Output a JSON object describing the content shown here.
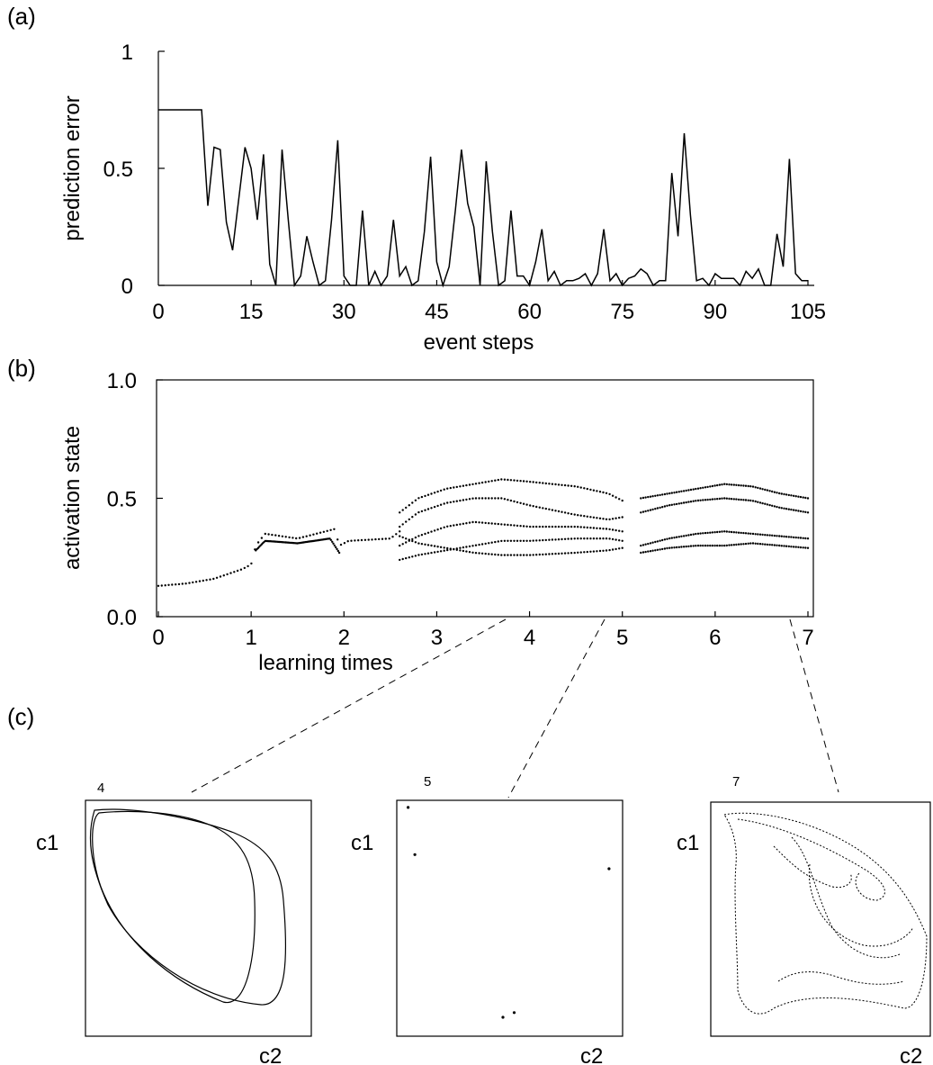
{
  "chart_data": [
    {
      "panel": "(a)",
      "type": "line",
      "xlabel": "event steps",
      "ylabel": "prediction error",
      "xlim": [
        0,
        105
      ],
      "ylim": [
        0,
        1
      ],
      "x_ticks": [
        "0",
        "15",
        "30",
        "45",
        "60",
        "75",
        "90",
        "105"
      ],
      "y_ticks": [
        "0",
        "0.5",
        "1"
      ],
      "grid": false,
      "series": [
        {
          "x": [
            0,
            7,
            8,
            9,
            10,
            11,
            12,
            14,
            15,
            16,
            17,
            18,
            19,
            20,
            21,
            22,
            23,
            24,
            25,
            26,
            27,
            28,
            29,
            30,
            31,
            32,
            33,
            34,
            35,
            36,
            37,
            38,
            39,
            40,
            41,
            42,
            43,
            44,
            45,
            46,
            47,
            48,
            49,
            50,
            51,
            52,
            53,
            54,
            55,
            56,
            57,
            58,
            59,
            60,
            61,
            62,
            63,
            64,
            65,
            66,
            67,
            68,
            69,
            70,
            71,
            72,
            73,
            74,
            75,
            76,
            77,
            78,
            79,
            80,
            81,
            82,
            83,
            84,
            85,
            86,
            87,
            88,
            89,
            90,
            91,
            92,
            93,
            94,
            95,
            96,
            97,
            98,
            99,
            100,
            101,
            102,
            103,
            104,
            105
          ],
          "y": [
            0.75,
            0.75,
            0.34,
            0.59,
            0.58,
            0.27,
            0.15,
            0.59,
            0.5,
            0.28,
            0.56,
            0.09,
            0.0,
            0.58,
            0.28,
            0.0,
            0.04,
            0.21,
            0.1,
            0.0,
            0.02,
            0.28,
            0.62,
            0.04,
            0.0,
            0.0,
            0.32,
            0.0,
            0.06,
            0.0,
            0.04,
            0.28,
            0.04,
            0.08,
            0.0,
            0.02,
            0.23,
            0.55,
            0.1,
            0.0,
            0.08,
            0.32,
            0.58,
            0.35,
            0.25,
            0.0,
            0.53,
            0.23,
            0.0,
            0.02,
            0.32,
            0.04,
            0.04,
            0.0,
            0.1,
            0.24,
            0.02,
            0.06,
            0.0,
            0.02,
            0.02,
            0.03,
            0.05,
            0.0,
            0.05,
            0.24,
            0.02,
            0.05,
            0.0,
            0.03,
            0.04,
            0.07,
            0.05,
            0.0,
            0.02,
            0.02,
            0.48,
            0.21,
            0.65,
            0.3,
            0.02,
            0.03,
            0.0,
            0.05,
            0.03,
            0.03,
            0.03,
            0.0,
            0.06,
            0.03,
            0.07,
            0.0,
            0.0,
            0.22,
            0.08,
            0.54,
            0.05,
            0.02,
            0.02
          ]
        }
      ]
    },
    {
      "panel": "(b)",
      "type": "scatter",
      "xlabel": "learning times",
      "ylabel": "activation state",
      "xlim": [
        0,
        7
      ],
      "ylim": [
        0.0,
        1.0
      ],
      "x_ticks": [
        "0",
        "1",
        "2",
        "3",
        "4",
        "5",
        "6",
        "7"
      ],
      "y_ticks": [
        "0.0",
        "0.5",
        "1.0"
      ],
      "grid": false,
      "branches": [
        {
          "x": [
            0,
            0.3,
            0.6,
            0.9,
            1.0,
            1.05,
            1.15,
            1.5,
            1.9,
            1.95,
            2.05,
            2.5,
            2.6
          ],
          "y": [
            0.13,
            0.14,
            0.16,
            0.2,
            0.22,
            0.3,
            0.35,
            0.33,
            0.37,
            0.3,
            0.32,
            0.33,
            0.36
          ]
        },
        {
          "x": [
            1.05,
            1.15,
            1.5,
            1.85,
            1.95
          ],
          "y": [
            0.28,
            0.32,
            0.31,
            0.33,
            0.27
          ]
        },
        {
          "x": [
            2.6,
            2.8,
            3.1,
            3.4,
            3.7,
            4.0,
            4.5,
            4.85,
            5.0
          ],
          "y": [
            0.44,
            0.5,
            0.54,
            0.56,
            0.58,
            0.57,
            0.55,
            0.52,
            0.49
          ]
        },
        {
          "x": [
            2.6,
            2.8,
            3.1,
            3.4,
            3.7,
            4.0,
            4.5,
            4.85,
            5.0
          ],
          "y": [
            0.3,
            0.34,
            0.38,
            0.4,
            0.39,
            0.38,
            0.38,
            0.37,
            0.36
          ]
        },
        {
          "x": [
            2.6,
            2.8,
            3.1,
            3.4,
            3.7,
            4.0,
            4.5,
            4.85,
            5.0
          ],
          "y": [
            0.24,
            0.26,
            0.28,
            0.3,
            0.32,
            0.32,
            0.33,
            0.33,
            0.32
          ]
        },
        {
          "x": [
            2.6,
            2.8,
            3.1,
            3.4,
            3.7,
            4.0,
            4.5,
            4.85,
            5.0
          ],
          "y": [
            0.38,
            0.44,
            0.48,
            0.5,
            0.5,
            0.47,
            0.43,
            0.41,
            0.42
          ]
        },
        {
          "x": [
            2.6,
            2.8,
            3.1,
            3.4,
            3.7,
            4.0,
            4.5,
            4.85,
            5.0
          ],
          "y": [
            0.34,
            0.31,
            0.29,
            0.27,
            0.26,
            0.26,
            0.27,
            0.28,
            0.29
          ]
        },
        {
          "x": [
            5.2,
            5.5,
            5.8,
            6.1,
            6.4,
            6.7,
            7.0
          ],
          "y": [
            0.5,
            0.52,
            0.54,
            0.56,
            0.55,
            0.52,
            0.5
          ]
        },
        {
          "x": [
            5.2,
            5.5,
            5.8,
            6.1,
            6.4,
            6.7,
            7.0
          ],
          "y": [
            0.3,
            0.33,
            0.35,
            0.36,
            0.35,
            0.34,
            0.33
          ]
        },
        {
          "x": [
            5.2,
            5.5,
            5.8,
            6.1,
            6.4,
            6.7,
            7.0
          ],
          "y": [
            0.27,
            0.29,
            0.3,
            0.3,
            0.31,
            0.3,
            0.29
          ]
        },
        {
          "x": [
            5.2,
            5.5,
            5.8,
            6.1,
            6.4,
            6.7,
            7.0
          ],
          "y": [
            0.44,
            0.47,
            0.49,
            0.5,
            0.49,
            0.46,
            0.44
          ]
        }
      ]
    },
    {
      "panel": "(c)",
      "type": "scatter",
      "subplots": [
        {
          "label": "4",
          "xlabel": "c2",
          "ylabel": "c1",
          "zoom_from": 4,
          "pattern": "two-loop limit cycle"
        },
        {
          "label": "5",
          "xlabel": "c2",
          "ylabel": "c1",
          "zoom_from": 5,
          "points": [
            [
              0.05,
              0.97
            ],
            [
              0.08,
              0.77
            ],
            [
              0.94,
              0.71
            ],
            [
              0.47,
              0.08
            ],
            [
              0.52,
              0.1
            ]
          ]
        },
        {
          "label": "7",
          "xlabel": "c2",
          "ylabel": "c1",
          "zoom_from": 7,
          "pattern": "chaotic attractor"
        }
      ]
    }
  ]
}
